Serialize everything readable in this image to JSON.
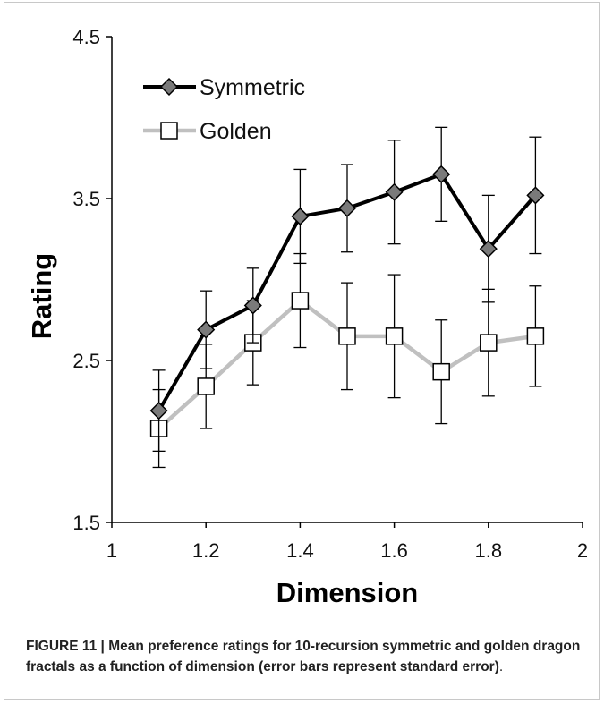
{
  "chart_data": {
    "type": "line",
    "title": "",
    "xlabel": "Dimension",
    "ylabel": "Rating",
    "xlim": [
      1,
      2
    ],
    "ylim": [
      1.5,
      4.5
    ],
    "x_ticks": [
      "1",
      "1.2",
      "1.4",
      "1.6",
      "1.8",
      "2"
    ],
    "x_tick_values": [
      1,
      1.2,
      1.4,
      1.6,
      1.8,
      2
    ],
    "y_ticks": [
      "1.5",
      "2.5",
      "3.5",
      "4.5"
    ],
    "y_tick_values": [
      1.5,
      2.5,
      3.5,
      4.5
    ],
    "grid": false,
    "legend_position": "top-left",
    "x": [
      1.1,
      1.2,
      1.3,
      1.4,
      1.5,
      1.6,
      1.7,
      1.8,
      1.9
    ],
    "series": [
      {
        "name": "Symmetric",
        "marker": "diamond",
        "line_color": "#000000",
        "marker_color": "#7a7a7a",
        "values": [
          2.19,
          2.69,
          2.84,
          3.39,
          3.44,
          3.54,
          3.65,
          3.19,
          3.52
        ],
        "error": [
          0.25,
          0.24,
          0.23,
          0.29,
          0.27,
          0.32,
          0.29,
          0.33,
          0.36
        ]
      },
      {
        "name": "Golden",
        "marker": "square",
        "line_color": "#c0c0c0",
        "marker_color": "#ffffff",
        "values": [
          2.08,
          2.34,
          2.61,
          2.87,
          2.65,
          2.65,
          2.43,
          2.61,
          2.65
        ],
        "error": [
          0.24,
          0.26,
          0.26,
          0.29,
          0.33,
          0.38,
          0.32,
          0.33,
          0.31
        ]
      }
    ]
  },
  "caption": {
    "label": "FIGURE 11 | ",
    "text": "Mean preference ratings for 10-recursion symmetric and golden dragon fractals as a function of dimension (error bars represent standard error)",
    "end": "."
  }
}
